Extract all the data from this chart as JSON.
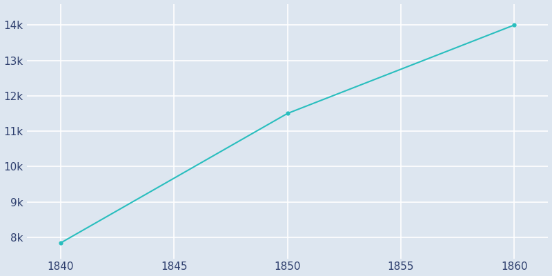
{
  "years": [
    1840,
    1850,
    1860
  ],
  "population": [
    7840,
    11500,
    14000
  ],
  "line_color": "#29BEBE",
  "background_color": "#DDE6F0",
  "grid_color": "#FFFFFF",
  "text_color": "#2E3F6E",
  "xlim": [
    1838.5,
    1861.5
  ],
  "ylim": [
    7400,
    14600
  ],
  "xticks": [
    1840,
    1845,
    1850,
    1855,
    1860
  ],
  "yticks": [
    8000,
    9000,
    10000,
    11000,
    12000,
    13000,
    14000
  ],
  "ytick_labels": [
    "8k",
    "9k",
    "10k",
    "11k",
    "12k",
    "13k",
    "14k"
  ],
  "line_width": 1.5,
  "marker": "o",
  "marker_size": 3.5
}
